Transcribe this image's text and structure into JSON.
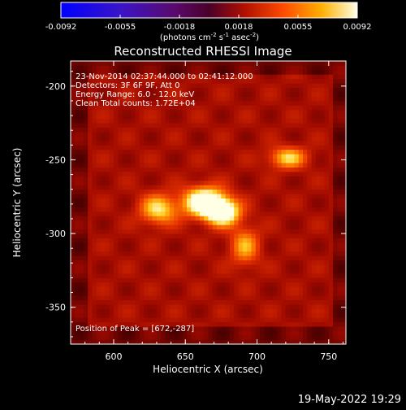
{
  "chart_data": {
    "type": "heatmap",
    "title": "Reconstructed RHESSI Image",
    "xlabel": "Heliocentric X (arcsec)",
    "ylabel": "Heliocentric Y (arcsec)",
    "xlim": [
      570,
      762
    ],
    "ylim": [
      -375,
      -183
    ],
    "x_ticks": [
      600,
      650,
      700,
      750
    ],
    "y_ticks": [
      -350,
      -300,
      -250,
      -200
    ],
    "colorbar": {
      "range": [
        -0.0092,
        0.0092
      ],
      "ticks": [
        "-0.0092",
        "-0.0055",
        "-0.0018",
        "0.0018",
        "0.0055",
        "0.0092"
      ],
      "unit_label_parts": [
        "(photons cm",
        "-2",
        " s",
        "-1",
        " asec",
        "-2",
        ")"
      ]
    },
    "annotations": {
      "time_range": "23-Nov-2014 02:37:44.000 to 02:41:12.000",
      "detectors": "Detectors: 3F 6F 9F, Att 0",
      "energy": "Energy Range: 6.0 - 12.0 keV",
      "clean": "Clean     Total counts: 1.72E+04",
      "peak": "Position of Peak = [672,-287]"
    },
    "sources": [
      {
        "x": 662,
        "y": -280,
        "amp": 1.0,
        "sx": 10,
        "sy": 7
      },
      {
        "x": 675,
        "y": -287,
        "amp": 0.9,
        "sx": 8,
        "sy": 6
      },
      {
        "x": 630,
        "y": -285,
        "amp": 0.6,
        "sx": 9,
        "sy": 7
      },
      {
        "x": 720,
        "y": -250,
        "amp": 0.55,
        "sx": 9,
        "sy": 5
      },
      {
        "x": 690,
        "y": -310,
        "amp": 0.45,
        "sx": 7,
        "sy": 9
      }
    ]
  },
  "footer": {
    "date_stamp": "19-May-2022 19:29"
  }
}
